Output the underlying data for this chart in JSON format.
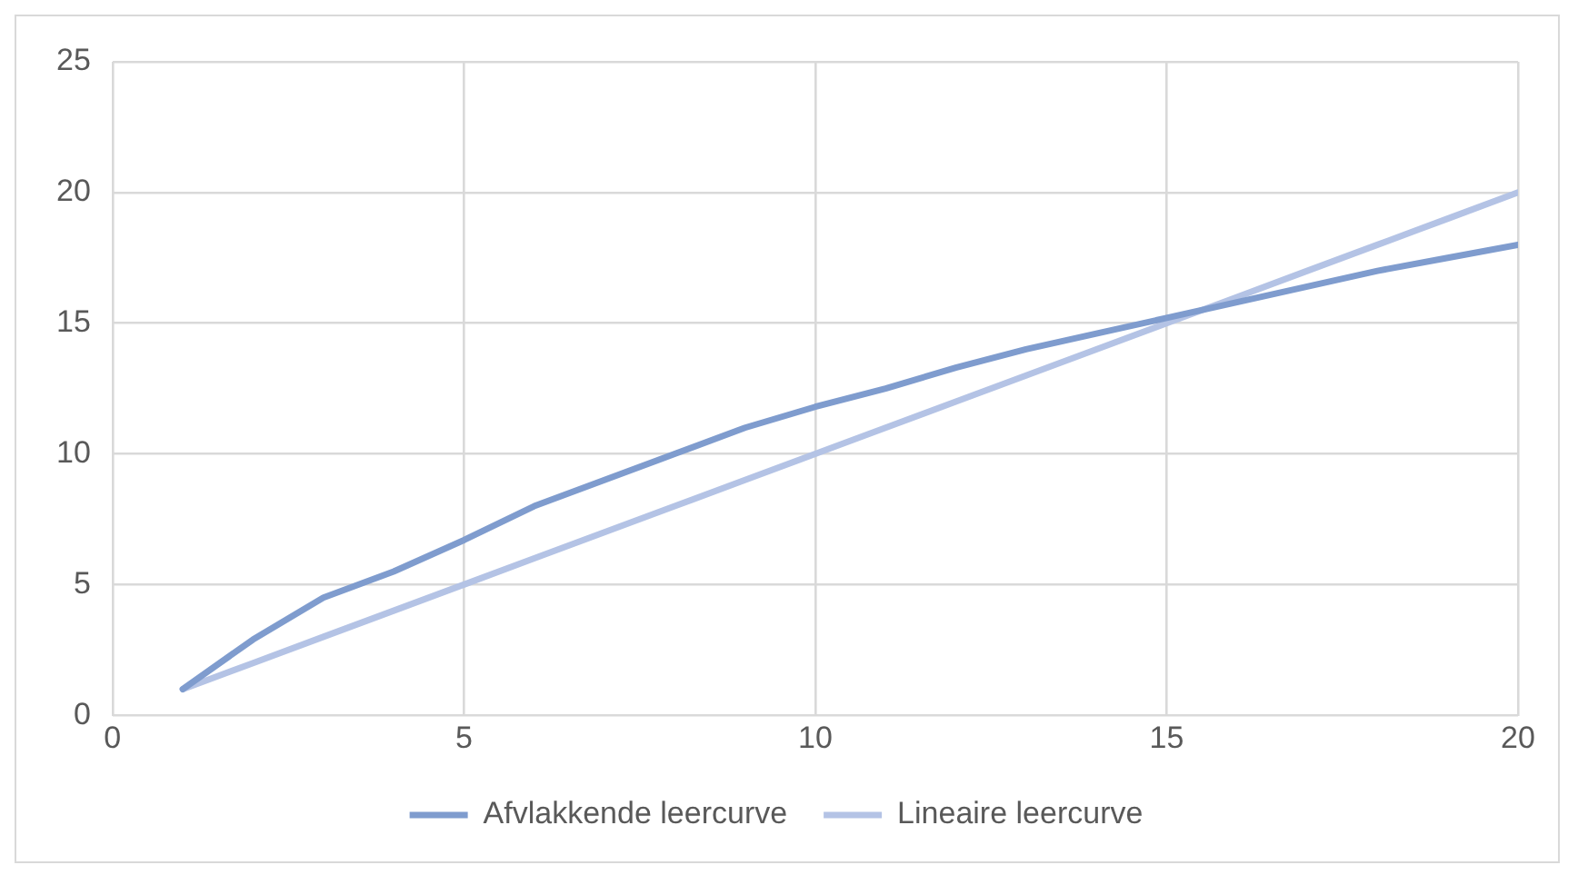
{
  "chart_data": {
    "type": "line",
    "x": [
      1,
      2,
      3,
      4,
      5,
      6,
      7,
      8,
      9,
      10,
      11,
      12,
      13,
      14,
      15,
      16,
      17,
      18,
      19,
      20
    ],
    "series": [
      {
        "name": "Afvlakkende leercurve",
        "color": "#7f9cce",
        "values": [
          1,
          2.9,
          4.5,
          5.5,
          6.7,
          8,
          9,
          10,
          11,
          11.8,
          12.5,
          13.3,
          14,
          14.6,
          15.2,
          15.8,
          16.4,
          17,
          17.5,
          18
        ]
      },
      {
        "name": "Lineaire leercurve",
        "color": "#b4c3e5",
        "values": [
          1,
          2,
          3,
          4,
          5,
          6,
          7,
          8,
          9,
          10,
          11,
          12,
          13,
          14,
          15,
          16,
          17,
          18,
          19,
          20
        ]
      }
    ],
    "xlim": [
      0,
      20
    ],
    "xticks": [
      0,
      5,
      10,
      15,
      20
    ],
    "ylim": [
      0,
      25
    ],
    "yticks": [
      0,
      5,
      10,
      15,
      20,
      25
    ],
    "grid": true,
    "legend": "bottom",
    "marker": "none",
    "line_style": "solid"
  }
}
